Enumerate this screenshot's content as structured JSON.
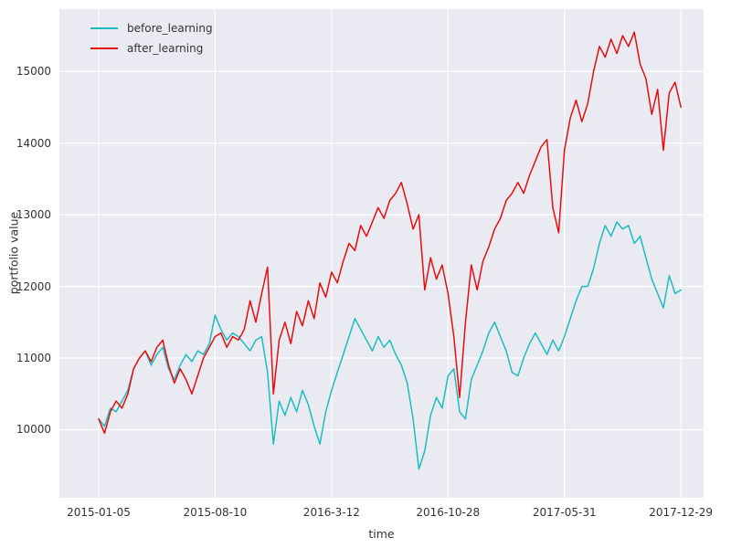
{
  "figure": {
    "background": "#ffffff",
    "axes_background": "#eaeaf2",
    "grid_color": "#ffffff",
    "tick_color": "#333333"
  },
  "chart_data": {
    "type": "line",
    "title": "",
    "xlabel": "time",
    "ylabel": "portfolio value",
    "grid": true,
    "legend_position": "upper-left",
    "xlim": [
      -0.0675,
      1.039
    ],
    "ylim": [
      9050,
      15870
    ],
    "x_tick_positions": [
      0,
      0.2,
      0.4,
      0.6,
      0.8,
      1
    ],
    "x_tick_labels": [
      "2015-01-05",
      "2015-08-10",
      "2016-3-12",
      "2016-10-28",
      "2017-05-31",
      "2017-12-29"
    ],
    "y_ticks": [
      10000,
      11000,
      12000,
      13000,
      14000,
      15000
    ],
    "x": [
      0,
      0.01,
      0.02,
      0.03,
      0.04,
      0.05,
      0.06,
      0.07,
      0.08,
      0.09,
      0.1,
      0.11,
      0.12,
      0.13,
      0.14,
      0.15,
      0.16,
      0.17,
      0.18,
      0.19,
      0.2,
      0.21,
      0.22,
      0.23,
      0.24,
      0.25,
      0.26,
      0.27,
      0.28,
      0.29,
      0.3,
      0.31,
      0.32,
      0.33,
      0.34,
      0.35,
      0.36,
      0.37,
      0.38,
      0.39,
      0.4,
      0.41,
      0.42,
      0.43,
      0.44,
      0.45,
      0.46,
      0.47,
      0.48,
      0.49,
      0.5,
      0.51,
      0.52,
      0.53,
      0.54,
      0.55,
      0.56,
      0.57,
      0.58,
      0.59,
      0.6,
      0.61,
      0.62,
      0.63,
      0.64,
      0.65,
      0.66,
      0.67,
      0.68,
      0.69,
      0.7,
      0.71,
      0.72,
      0.73,
      0.74,
      0.75,
      0.76,
      0.77,
      0.78,
      0.79,
      0.8,
      0.81,
      0.82,
      0.83,
      0.84,
      0.85,
      0.86,
      0.87,
      0.88,
      0.89,
      0.9,
      0.91,
      0.92,
      0.93,
      0.94,
      0.95,
      0.96,
      0.97,
      0.98,
      0.99,
      1
    ],
    "series": [
      {
        "name": "before_learning",
        "color": "#1cbdbe",
        "values": [
          10150,
          10050,
          10300,
          10250,
          10400,
          10550,
          10850,
          11000,
          11100,
          10900,
          11050,
          11150,
          10850,
          10700,
          10900,
          11050,
          10950,
          11100,
          11050,
          11200,
          11600,
          11400,
          11250,
          11350,
          11300,
          11200,
          11100,
          11250,
          11300,
          10800,
          9800,
          10400,
          10200,
          10450,
          10250,
          10550,
          10350,
          10050,
          9800,
          10250,
          10550,
          10800,
          11050,
          11300,
          11550,
          11400,
          11250,
          11100,
          11300,
          11150,
          11250,
          11050,
          10900,
          10650,
          10150,
          9450,
          9700,
          10200,
          10450,
          10300,
          10750,
          10850,
          10250,
          10150,
          10700,
          10900,
          11100,
          11350,
          11500,
          11300,
          11100,
          10800,
          10750,
          11000,
          11200,
          11350,
          11200,
          11050,
          11250,
          11100,
          11300,
          11550,
          11800,
          12000,
          12000,
          12250,
          12600,
          12850,
          12700,
          12900,
          12800,
          12850,
          12600,
          12700,
          12400,
          12100,
          11900,
          11700,
          12150,
          11900,
          11950
        ]
      },
      {
        "name": "after_learning",
        "color": "#e80d0d",
        "values": [
          10150,
          9950,
          10250,
          10400,
          10300,
          10500,
          10850,
          11000,
          11100,
          10950,
          11150,
          11250,
          10900,
          10650,
          10850,
          10700,
          10500,
          10750,
          11000,
          11150,
          11300,
          11350,
          11150,
          11300,
          11250,
          11400,
          11800,
          11500,
          11900,
          12270,
          10500,
          11250,
          11500,
          11200,
          11650,
          11450,
          11800,
          11550,
          12050,
          11850,
          12200,
          12050,
          12350,
          12600,
          12500,
          12850,
          12700,
          12900,
          13100,
          12950,
          13200,
          13300,
          13450,
          13150,
          12800,
          13000,
          11950,
          12400,
          12100,
          12300,
          11900,
          11300,
          10450,
          11500,
          12300,
          11950,
          12350,
          12550,
          12800,
          12950,
          13200,
          13300,
          13450,
          13300,
          13550,
          13750,
          13950,
          14050,
          13100,
          12750,
          13900,
          14350,
          14600,
          14300,
          14550,
          15000,
          15350,
          15200,
          15450,
          15250,
          15500,
          15350,
          15550,
          15100,
          14900,
          14400,
          14750,
          13900,
          14700,
          14850,
          14500
        ]
      }
    ]
  }
}
